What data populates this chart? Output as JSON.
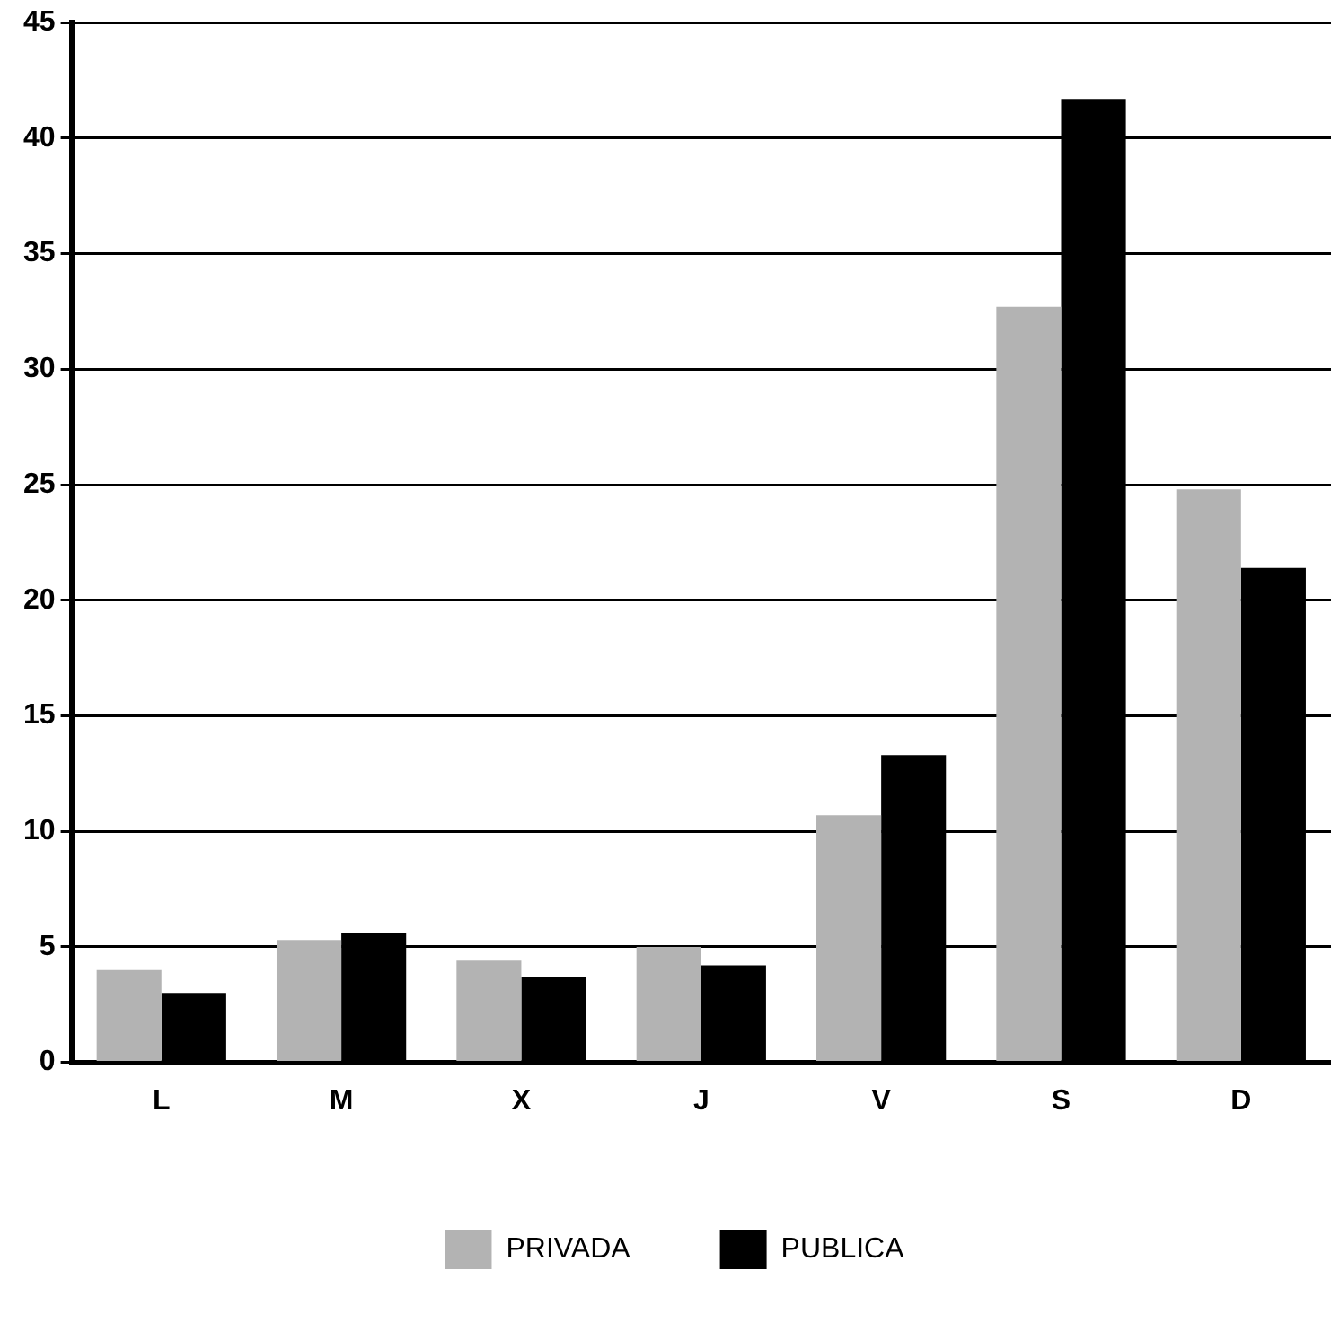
{
  "chart_data": {
    "type": "bar",
    "categories": [
      "L",
      "M",
      "X",
      "J",
      "V",
      "S",
      "D"
    ],
    "series": [
      {
        "name": "PRIVADA",
        "color": "#b3b3b3",
        "values": [
          4.0,
          5.3,
          4.4,
          5.0,
          10.7,
          32.7,
          24.8
        ]
      },
      {
        "name": "PUBLICA",
        "color": "#000000",
        "values": [
          3.0,
          5.6,
          3.7,
          4.2,
          13.3,
          41.7,
          21.4
        ]
      }
    ],
    "ylim": [
      0,
      45
    ],
    "yticks": [
      0,
      5,
      10,
      15,
      20,
      25,
      30,
      35,
      40,
      45
    ],
    "grid": "y",
    "legend": "bottom"
  }
}
